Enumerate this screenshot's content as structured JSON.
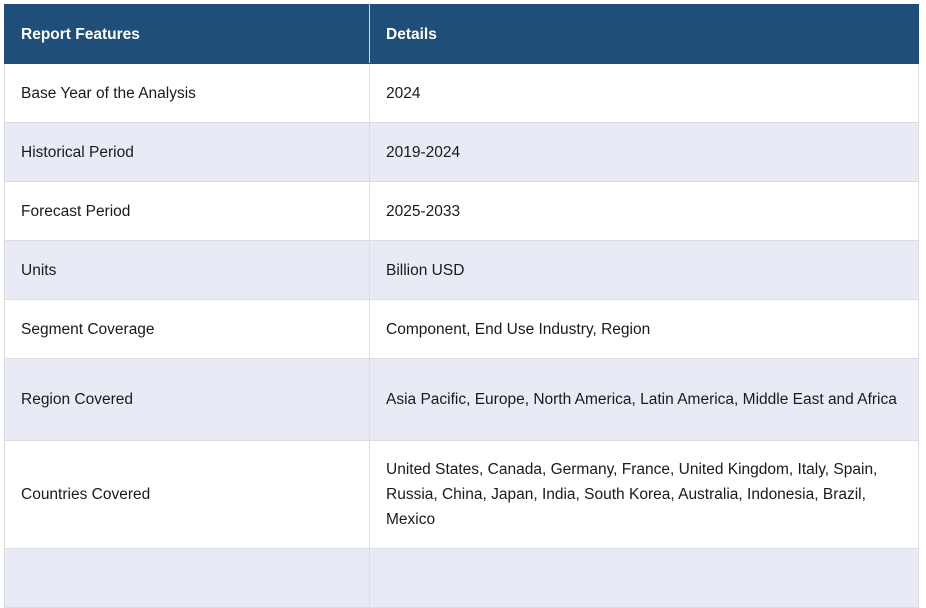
{
  "table": {
    "headers": [
      "Report Features",
      "Details"
    ],
    "rows": [
      {
        "feature": "Base Year of the Analysis",
        "details": "2024"
      },
      {
        "feature": "Historical Period",
        "details": "2019-2024"
      },
      {
        "feature": "Forecast Period",
        "details": "2025-2033"
      },
      {
        "feature": "Units",
        "details": "Billion USD"
      },
      {
        "feature": "Segment Coverage",
        "details": "Component, End Use Industry, Region"
      },
      {
        "feature": "Region Covered",
        "details": "Asia Pacific, Europe, North America, Latin America, Middle East and Africa"
      },
      {
        "feature": "Countries Covered",
        "details": "United States, Canada, Germany, France, United Kingdom, Italy, Spain, Russia, China, Japan, India, South Korea, Australia, Indonesia, Brazil, Mexico"
      }
    ],
    "colors": {
      "header_bg": "#1f4e79",
      "stripe_bg": "#e8eaf5"
    }
  }
}
